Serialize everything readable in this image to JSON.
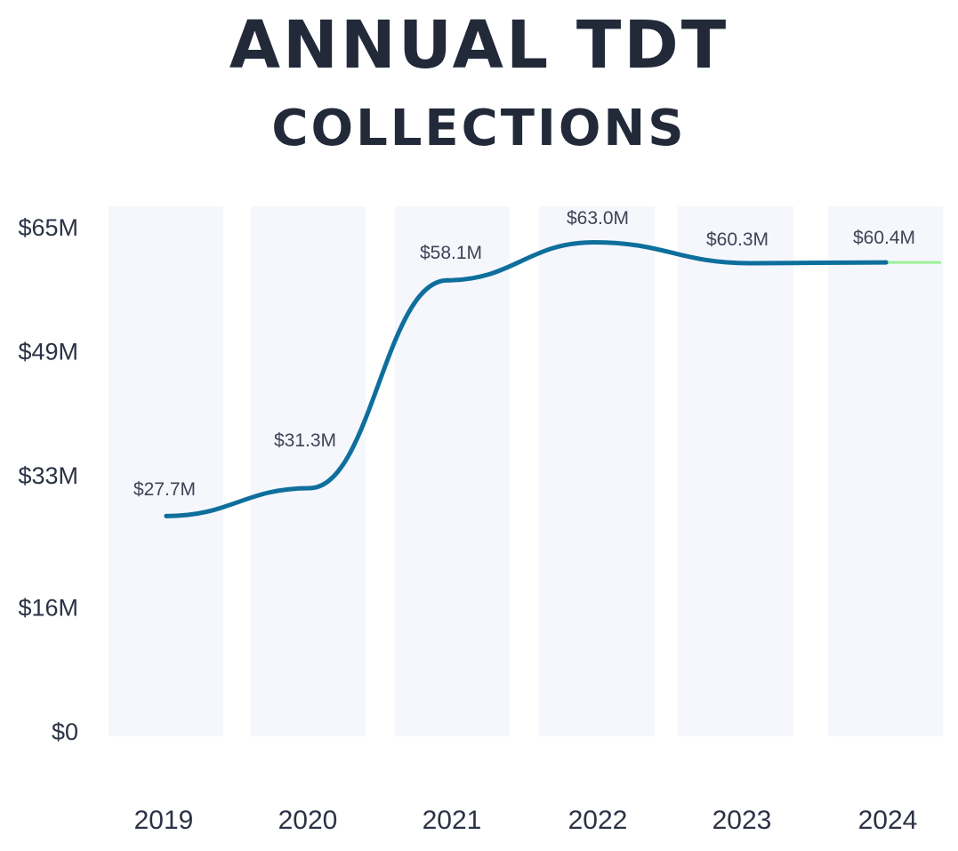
{
  "header": {
    "title_line1": "ANNUAL TDT",
    "title_line2": "COLLECTIONS"
  },
  "chart_data": {
    "type": "line",
    "title": "ANNUAL TDT COLLECTIONS",
    "categories": [
      "2019",
      "2020",
      "2021",
      "2022",
      "2023",
      "2024"
    ],
    "values": [
      27.7,
      31.3,
      58.1,
      63.0,
      60.3,
      60.4
    ],
    "data_labels": [
      "$27.7M",
      "$31.3M",
      "$58.1M",
      "$63.0M",
      "$60.3M",
      "$60.4M"
    ],
    "yticks": [
      "$0",
      "$16M",
      "$33M",
      "$49M",
      "$65M"
    ],
    "ytick_values": [
      0,
      16,
      33,
      49,
      65
    ],
    "ylim": [
      0,
      65
    ],
    "y_unit": "$M",
    "grid": false,
    "legend": "none",
    "colors": {
      "line": "#0e6f9c",
      "projection": "#9cf09a",
      "band": "#f6f6fd",
      "text": "#222a3a"
    }
  }
}
